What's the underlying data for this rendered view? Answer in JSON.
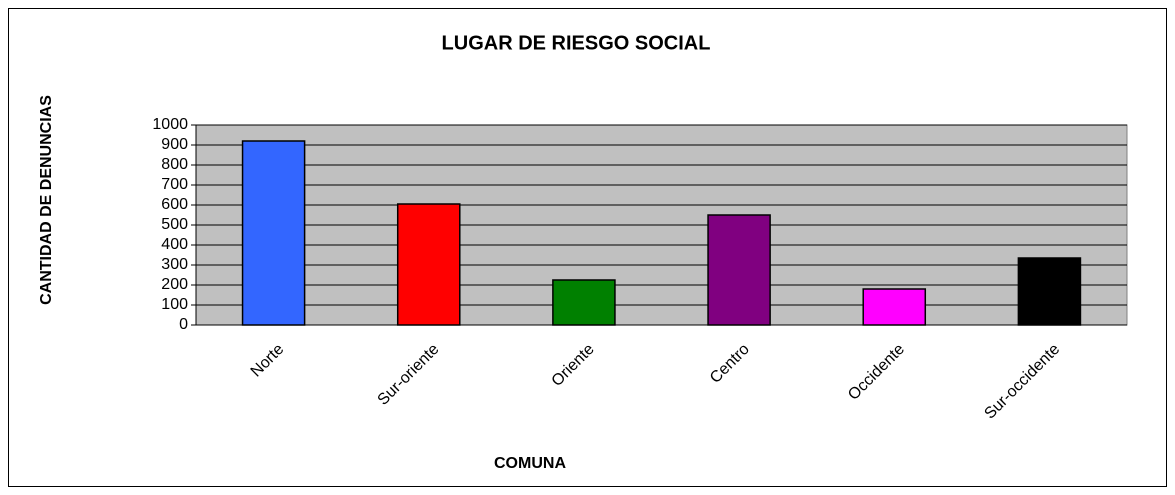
{
  "chart_data": {
    "type": "bar",
    "title": "LUGAR DE RIESGO SOCIAL",
    "x_label": "COMUNA",
    "y_label": "CANTIDAD DE DENUNCIAS",
    "categories": [
      "Norte",
      "Sur-oriente",
      "Oriente",
      "Centro",
      "Occidente",
      "Sur-occidente"
    ],
    "values": [
      920,
      605,
      225,
      550,
      180,
      335
    ],
    "colors": [
      "#3366ff",
      "#ff0000",
      "#008000",
      "#800080",
      "#ff00ff",
      "#000000"
    ],
    "ylim": [
      0,
      1000
    ],
    "yticks": [
      0,
      100,
      200,
      300,
      400,
      500,
      600,
      700,
      800,
      900,
      1000
    ],
    "grid": true
  }
}
